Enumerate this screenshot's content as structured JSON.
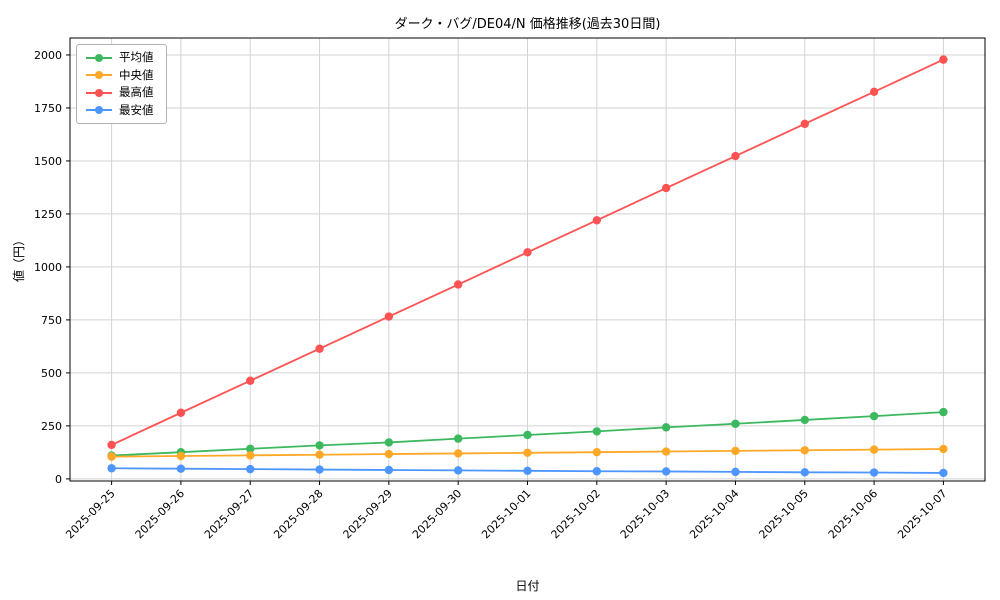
{
  "chart_data": {
    "type": "line",
    "title": "ダーク・バグ/DE04/N 価格推移(過去30日間)",
    "xlabel": "日付",
    "ylabel": "値（円）",
    "categories": [
      "2025-09-25",
      "2025-09-26",
      "2025-09-27",
      "2025-09-28",
      "2025-09-29",
      "2025-09-30",
      "2025-10-01",
      "2025-10-02",
      "2025-10-03",
      "2025-10-04",
      "2025-10-05",
      "2025-10-06",
      "2025-10-07"
    ],
    "series": [
      {
        "name": "平均値",
        "color": "#3cb85f",
        "values": [
          110,
          126,
          142,
          158,
          172,
          190,
          207,
          224,
          243,
          260,
          278,
          296,
          315
        ]
      },
      {
        "name": "中央値",
        "color": "#ffa726",
        "values": [
          105,
          108,
          111,
          114,
          117,
          120,
          123,
          126,
          129,
          132,
          135,
          138,
          141
        ]
      },
      {
        "name": "最高値",
        "color": "#ff5252",
        "values": [
          160,
          312,
          463,
          614,
          766,
          917,
          1069,
          1220,
          1372,
          1523,
          1675,
          1826,
          1978
        ]
      },
      {
        "name": "最安値",
        "color": "#4d96ff",
        "values": [
          50,
          48,
          46,
          44,
          42,
          40,
          38,
          36,
          35,
          33,
          31,
          30,
          28
        ]
      }
    ],
    "yticks": [
      0,
      250,
      500,
      750,
      1000,
      1250,
      1500,
      1750,
      2000
    ],
    "ylim": [
      -10,
      2080
    ],
    "grid": true,
    "legend_position": "upper left"
  }
}
